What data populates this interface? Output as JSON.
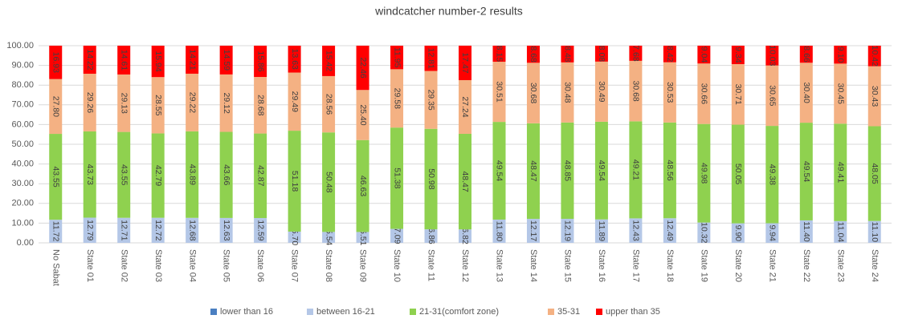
{
  "chart_data": {
    "type": "stacked_bar",
    "title": "windcatcher number-2 results",
    "categories": [
      "No Sabat",
      "State 01",
      "State 02",
      "State 03",
      "State 04",
      "State 05",
      "State 06",
      "State 07",
      "State 08",
      "State 09",
      "State 10",
      "State 11",
      "State 12",
      "State 13",
      "State 14",
      "State 15",
      "State 16",
      "State 17",
      "State 18",
      "State 19",
      "State 20",
      "State 21",
      "State 22",
      "State 23",
      "State 24"
    ],
    "series": [
      {
        "name": "lower than 16",
        "color": "#4a7fc1",
        "values": [
          0,
          0,
          0,
          0,
          0,
          0,
          0,
          0,
          0,
          0,
          0,
          0,
          0,
          0,
          0,
          0,
          0,
          0,
          0,
          0,
          0,
          0,
          0,
          0,
          0
        ]
      },
      {
        "name": "between 16-21",
        "color": "#b4c7e7",
        "values": [
          11.72,
          12.79,
          12.71,
          12.72,
          12.68,
          12.63,
          12.59,
          5.7,
          5.54,
          5.51,
          7.09,
          6.86,
          6.82,
          11.8,
          12.17,
          12.19,
          11.89,
          12.43,
          12.49,
          10.32,
          9.9,
          9.94,
          11.4,
          11.04,
          11.1
        ],
        "value_labels": [
          "11.72",
          "12.79",
          "12.71",
          "12.72",
          "12.68",
          "12.63",
          "12.59",
          "5.70",
          "5.54",
          "5.51",
          "7.09",
          "6.86",
          "6.82",
          "11.80",
          "12.17",
          "12.19",
          "11.89",
          "12.43",
          "12.49",
          "10.32",
          "9.90",
          "9.94",
          "11.40",
          "11.04",
          "11.10"
        ]
      },
      {
        "name": "21-31(comfort zone)",
        "color": "#8fd14f",
        "values": [
          43.55,
          43.73,
          43.55,
          42.79,
          43.89,
          43.66,
          42.87,
          51.18,
          50.48,
          46.63,
          51.38,
          50.98,
          48.47,
          49.54,
          48.47,
          48.85,
          49.54,
          49.21,
          48.56,
          49.98,
          50.05,
          49.38,
          49.54,
          49.41,
          48.05
        ],
        "value_labels": [
          "43.55",
          "43.73",
          "43.55",
          "42.79",
          "43.89",
          "43.66",
          "42.87",
          "51.18",
          "50.48",
          "46.63",
          "51.38",
          "50.98",
          "48.47",
          "49.54",
          "48.47",
          "48.85",
          "49.54",
          "49.21",
          "48.56",
          "49.98",
          "50.05",
          "49.38",
          "49.54",
          "49.41",
          "48.05"
        ]
      },
      {
        "name": "35-31",
        "color": "#f4b183",
        "values": [
          27.8,
          29.26,
          29.13,
          28.55,
          29.22,
          29.12,
          28.68,
          29.49,
          28.56,
          25.4,
          29.58,
          29.35,
          27.24,
          30.51,
          30.68,
          30.48,
          30.49,
          30.68,
          30.53,
          30.66,
          30.71,
          30.65,
          30.4,
          30.45,
          30.43
        ],
        "value_labels": [
          "27.80",
          "29.26",
          "29.13",
          "28.55",
          "29.22",
          "29.12",
          "28.68",
          "29.49",
          "28.56",
          "25.40",
          "29.58",
          "29.35",
          "27.24",
          "30.51",
          "30.68",
          "30.48",
          "30.49",
          "30.68",
          "30.53",
          "30.66",
          "30.71",
          "30.65",
          "30.40",
          "30.45",
          "30.43"
        ]
      },
      {
        "name": "upper than 35",
        "color": "#ff0000",
        "values": [
          16.93,
          14.22,
          14.61,
          15.94,
          14.21,
          14.59,
          15.86,
          13.63,
          15.42,
          22.46,
          11.95,
          12.81,
          17.47,
          8.15,
          8.68,
          8.48,
          8.08,
          7.68,
          8.42,
          9.04,
          9.34,
          10.03,
          8.66,
          9.1,
          10.42
        ],
        "value_labels": [
          "16.93",
          "14.22",
          "14.61",
          "15.94",
          "14.21",
          "14.59",
          "15.86",
          "13.63",
          "15.42",
          "22.46",
          "11.95",
          "12.81",
          "17.47",
          "8.15",
          "8.68",
          "8.48",
          "8.08",
          "7.68",
          "8.42",
          "9.04",
          "9.34",
          "10.03",
          "8.66",
          "9.10",
          "10.42"
        ]
      }
    ],
    "ylim": [
      0,
      100
    ],
    "yticks": [
      {
        "value": 0,
        "label": "0.00"
      },
      {
        "value": 10,
        "label": "10.00"
      },
      {
        "value": 20,
        "label": "20.00"
      },
      {
        "value": 30,
        "label": "30.00"
      },
      {
        "value": 40,
        "label": "40.00"
      },
      {
        "value": 50,
        "label": "50.00"
      },
      {
        "value": 60,
        "label": "60.00"
      },
      {
        "value": 70,
        "label": "70.00"
      },
      {
        "value": 80,
        "label": "80.00"
      },
      {
        "value": 90,
        "label": "90.00"
      },
      {
        "value": 100,
        "label": "100.00"
      }
    ],
    "grid": true,
    "legend": "bottom"
  }
}
